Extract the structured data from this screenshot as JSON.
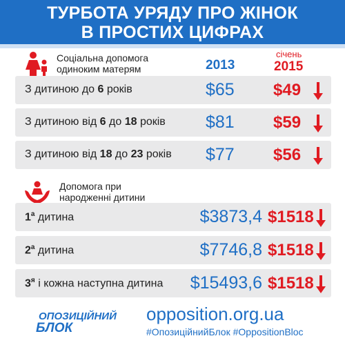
{
  "header": {
    "line1": "ТУРБОТА УРЯДУ ПРО ЖІНОК",
    "line2": "В ПРОСТИХ ЦИФРАХ"
  },
  "section1": {
    "label_line1": "Соціальна допомога",
    "label_line2": "одиноким матерям",
    "icon": "mother-child-icon",
    "col_2013": "2013",
    "col_2015_month": "січень",
    "col_2015_year": "2015",
    "rows": [
      {
        "pre": "З дитиною до ",
        "b1": "6",
        "mid": "",
        "b2": "",
        "post": " років",
        "v2013": "$65",
        "v2015": "$49"
      },
      {
        "pre": "З дитиною від ",
        "b1": "6",
        "mid": " до ",
        "b2": "18",
        "post": " років",
        "v2013": "$81",
        "v2015": "$59"
      },
      {
        "pre": "З дитиною від ",
        "b1": "18",
        "mid": " до ",
        "b2": "23",
        "post": " років",
        "v2013": "$77",
        "v2015": "$56"
      }
    ]
  },
  "section2": {
    "label_line1": "Допомога при",
    "label_line2": "народженні дитини",
    "icon": "hands-child-icon",
    "rows": [
      {
        "num": "1",
        "sup": "а",
        "post": " дитина",
        "v2013": "$3873,4",
        "v2015": "$1518"
      },
      {
        "num": "2",
        "sup": "а",
        "post": " дитина",
        "v2013": "$7746,8",
        "v2015": "$1518"
      },
      {
        "num": "3",
        "sup": "я",
        "post": " і кожна наступна дитина",
        "v2013": "$15493,6",
        "v2015": "$1518"
      }
    ]
  },
  "footer": {
    "logo_line1": "ОПОЗИЦІЙНИЙ",
    "logo_line2": "БЛОК",
    "site": "opposition.org.ua",
    "tags": "#ОпозиційнийБлок #OppositionBloc"
  },
  "colors": {
    "blue": "#1f6fc5",
    "red": "#e01b22",
    "row_bg": "#e9e9ea"
  },
  "chart_data": {
    "type": "table",
    "title": "ТУРБОТА УРЯДУ ПРО ЖІНОК В ПРОСТИХ ЦИФРАХ",
    "columns": [
      "2013",
      "січень 2015"
    ],
    "groups": [
      {
        "name": "Соціальна допомога одиноким матерям",
        "rows": [
          {
            "label": "З дитиною до 6 років",
            "values": [
              65,
              49
            ]
          },
          {
            "label": "З дитиною від 6 до 18 років",
            "values": [
              81,
              59
            ]
          },
          {
            "label": "З дитиною від 18 до 23 років",
            "values": [
              77,
              56
            ]
          }
        ]
      },
      {
        "name": "Допомога при народженні дитини",
        "rows": [
          {
            "label": "1а дитина",
            "values": [
              3873.4,
              1518
            ]
          },
          {
            "label": "2а дитина",
            "values": [
              7746.8,
              1518
            ]
          },
          {
            "label": "3я і кожна наступна дитина",
            "values": [
              15493.6,
              1518
            ]
          }
        ]
      }
    ]
  }
}
